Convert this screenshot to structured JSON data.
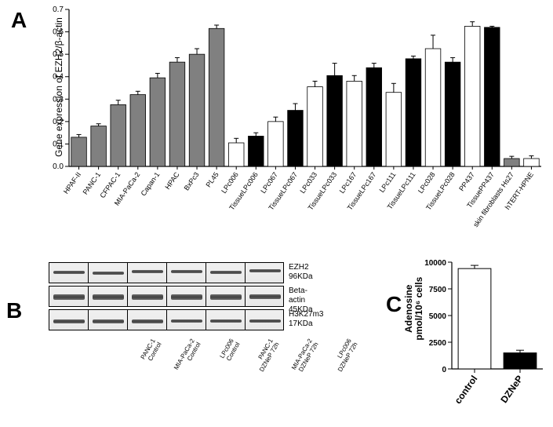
{
  "panels": {
    "A": "A",
    "B": "B",
    "C": "C"
  },
  "chartA": {
    "ylabel": "Gene expression of  EZH2/β-actin",
    "ylim": [
      0,
      0.7
    ],
    "ytick_step": 0.1,
    "bars": [
      {
        "name": "HPAF-II",
        "value": 0.13,
        "err": 0.012,
        "fill": "#808080"
      },
      {
        "name": "PANC-1",
        "value": 0.18,
        "err": 0.01,
        "fill": "#808080"
      },
      {
        "name": "CFPAC-1",
        "value": 0.275,
        "err": 0.02,
        "fill": "#808080"
      },
      {
        "name": "MIA-PaCa-2",
        "value": 0.32,
        "err": 0.015,
        "fill": "#808080"
      },
      {
        "name": "Capan-1",
        "value": 0.395,
        "err": 0.02,
        "fill": "#808080"
      },
      {
        "name": "HPAC",
        "value": 0.465,
        "err": 0.02,
        "fill": "#808080"
      },
      {
        "name": "BxPc3",
        "value": 0.5,
        "err": 0.025,
        "fill": "#808080"
      },
      {
        "name": "PL45",
        "value": 0.615,
        "err": 0.015,
        "fill": "#808080"
      },
      {
        "name": "LPc006",
        "value": 0.105,
        "err": 0.02,
        "fill": "#ffffff"
      },
      {
        "name": "TissueLPc006",
        "value": 0.135,
        "err": 0.015,
        "fill": "#000000"
      },
      {
        "name": "LPc067",
        "value": 0.2,
        "err": 0.02,
        "fill": "#ffffff"
      },
      {
        "name": "TissueLPc067",
        "value": 0.25,
        "err": 0.03,
        "fill": "#000000"
      },
      {
        "name": "LPc033",
        "value": 0.355,
        "err": 0.025,
        "fill": "#ffffff"
      },
      {
        "name": "TissueLPc033",
        "value": 0.405,
        "err": 0.055,
        "fill": "#000000"
      },
      {
        "name": "LPc167",
        "value": 0.38,
        "err": 0.025,
        "fill": "#ffffff"
      },
      {
        "name": "TissueLPc167",
        "value": 0.44,
        "err": 0.02,
        "fill": "#000000"
      },
      {
        "name": "LPc111",
        "value": 0.33,
        "err": 0.04,
        "fill": "#ffffff"
      },
      {
        "name": "TissueLPc111",
        "value": 0.48,
        "err": 0.012,
        "fill": "#000000"
      },
      {
        "name": "LPc028",
        "value": 0.525,
        "err": 0.06,
        "fill": "#ffffff"
      },
      {
        "name": "TissueLPc028",
        "value": 0.465,
        "err": 0.02,
        "fill": "#000000"
      },
      {
        "name": "PP437",
        "value": 0.625,
        "err": 0.02,
        "fill": "#ffffff"
      },
      {
        "name": "TissuePP437",
        "value": 0.62,
        "err": 0.005,
        "fill": "#000000"
      },
      {
        "name": "skin fibroblasts Hs27",
        "value": 0.035,
        "err": 0.01,
        "fill": "#808080"
      },
      {
        "name": "hTERT-HPNE",
        "value": 0.035,
        "err": 0.012,
        "fill": "#ffffff"
      }
    ]
  },
  "blots": {
    "strips": [
      {
        "label": "EZH2",
        "mw": "96KDa",
        "bands": [
          0.45,
          0.48,
          0.42,
          0.4,
          0.44,
          0.38
        ],
        "thick": [
          4,
          4.5,
          4,
          4,
          4.2,
          3.8
        ]
      },
      {
        "label": "Beta-actin",
        "mw": "45KDa",
        "bands": [
          0.5,
          0.5,
          0.5,
          0.5,
          0.5,
          0.48
        ],
        "thick": [
          7,
          7,
          7,
          7,
          6.5,
          5.5
        ]
      },
      {
        "label": "H3K27m3",
        "mw": "17KDa",
        "bands": [
          0.55,
          0.55,
          0.55,
          0.52,
          0.5,
          0.52
        ],
        "thick": [
          5,
          5,
          5,
          4.5,
          4,
          4.5
        ]
      }
    ],
    "lanes": [
      "PANC-1\nControl",
      "MIA-PaCa-2\nControl",
      "LPc006\nControl",
      "PANC-1\nDZNeP 72h",
      "MIA-PaCa-2\nDZNeP 72h",
      "LPc006\nDZNeP 72h"
    ]
  },
  "chartC": {
    "ylabel": "Adenosine\npmol/10⁶ cells",
    "ylim": [
      0,
      10000
    ],
    "ytick_step": 2500,
    "bars": [
      {
        "name": "control",
        "value": 9400,
        "err": 300,
        "fill": "#ffffff"
      },
      {
        "name": "DZNeP",
        "value": 1500,
        "err": 250,
        "fill": "#000000"
      }
    ]
  }
}
